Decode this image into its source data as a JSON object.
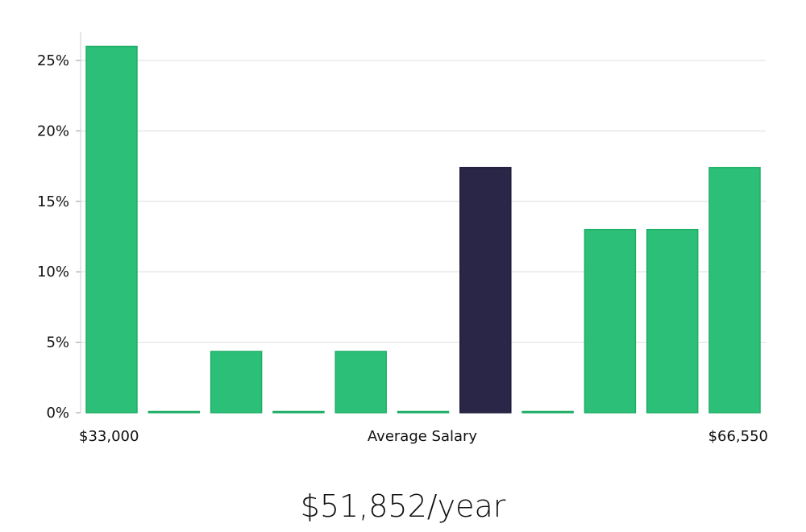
{
  "chart_data": {
    "type": "bar",
    "categories": [
      "1",
      "2",
      "3",
      "4",
      "5",
      "6",
      "7",
      "8",
      "9",
      "10",
      "11"
    ],
    "values": [
      26.0,
      0,
      4.35,
      0,
      4.35,
      0,
      17.4,
      0,
      13.0,
      13.0,
      17.4
    ],
    "highlight_index": 6,
    "ylim": [
      0,
      27
    ],
    "yticks": [
      0,
      5,
      10,
      15,
      20,
      25
    ],
    "ytick_format": "%",
    "x_label_left": "$33,000",
    "x_label_center": "Average Salary",
    "x_label_right": "$66,550",
    "grid": true,
    "colors": {
      "bar": "#2bbf77",
      "bar_edge": "#1fae66",
      "highlight": "#2a2648",
      "grid": "#dddddd",
      "axis": "#cccccc"
    }
  },
  "salary_text": "$51,852/year"
}
